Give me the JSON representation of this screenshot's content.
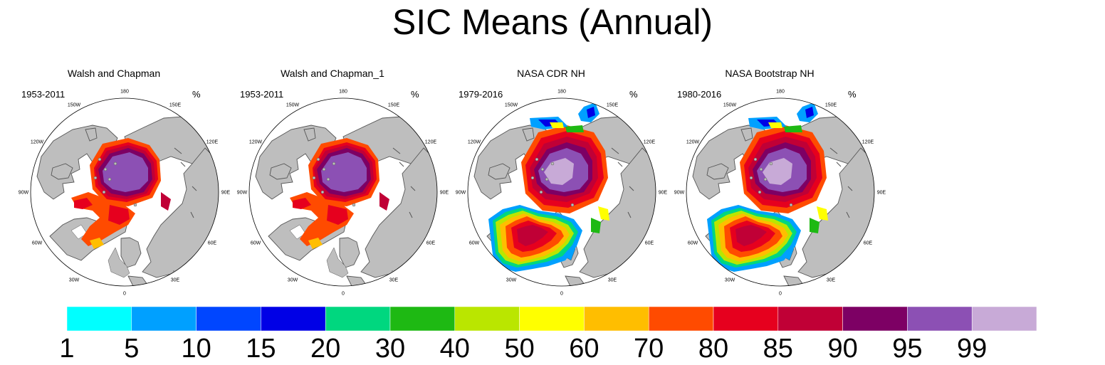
{
  "title": "SIC Means (Annual)",
  "unit": "%",
  "longitude_labels": [
    "180",
    "150E",
    "120E",
    "90E",
    "60E",
    "30E",
    "0",
    "30W",
    "60W",
    "90W",
    "120W",
    "150W"
  ],
  "panels": [
    {
      "title": "Walsh and Chapman",
      "period": "1953-2011"
    },
    {
      "title": "Walsh and Chapman_1",
      "period": "1953-2011"
    },
    {
      "title": "NASA CDR NH",
      "period": "1979-2016"
    },
    {
      "title": "NASA Bootstrap NH",
      "period": "1980-2016"
    }
  ],
  "colorbar": {
    "colors": [
      "#00ffff",
      "#00a0ff",
      "#0046ff",
      "#0000e6",
      "#00d77f",
      "#1eb913",
      "#bae600",
      "#ffff00",
      "#ffbe00",
      "#ff4b00",
      "#e6001e",
      "#c00036",
      "#7d0064",
      "#8c50b4",
      "#c8aad7"
    ],
    "labels": [
      "1",
      "5",
      "10",
      "15",
      "20",
      "30",
      "40",
      "50",
      "60",
      "70",
      "80",
      "85",
      "90",
      "95",
      "99"
    ]
  },
  "colors": {
    "land": "#bebebe",
    "coast": "#555555"
  }
}
